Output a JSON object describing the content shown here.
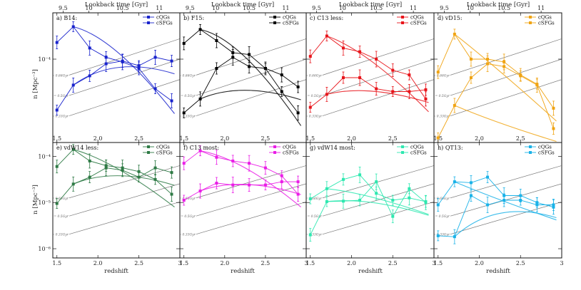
{
  "figure": {
    "top_axis_label": "Lookback time [Gyr]",
    "x_axis_label": "redshift",
    "y_axis_label": "n [Mpc⁻³]",
    "top_ticks": [
      {
        "label": "9.5",
        "z": 1.575
      },
      {
        "label": "10",
        "z": 1.89
      },
      {
        "label": "10.5",
        "z": 2.3
      },
      {
        "label": "11",
        "z": 2.75
      }
    ],
    "bottom_ticks": [
      {
        "label": "1.5",
        "z": 1.5
      },
      {
        "label": "2.0",
        "z": 2.0
      },
      {
        "label": "2.5",
        "z": 2.5
      },
      {
        "label": "3",
        "z": 3.0
      }
    ],
    "y_ticks_top_row": [
      {
        "label": "10⁻⁴",
        "value": 0.0001
      }
    ],
    "y_ticks_bottom_row": [
      {
        "label": "10⁻⁴",
        "value": 0.0001
      },
      {
        "label": "10⁻⁵",
        "value": 1e-05
      },
      {
        "label": "10⁻⁶",
        "value": 1e-06
      }
    ],
    "dt_labels": [
      "Δt = 0.66Gyr",
      "Δt = 0.5Gyr",
      "Δt = 0.33Gyr"
    ]
  },
  "chart_data": [
    {
      "type": "line",
      "panel": "a) B14:",
      "color": "#1822cc",
      "xlim": [
        1.45,
        3.0
      ],
      "ylim_log10": [
        -4.9,
        -3.5
      ],
      "title": "a) B14:",
      "series": [
        {
          "name": "cQGs",
          "x": [
            1.5,
            1.7,
            1.9,
            2.1,
            2.3,
            2.5,
            2.7,
            2.9
          ],
          "log_n": [
            -4.55,
            -4.28,
            -4.18,
            -4.05,
            -4.02,
            -4.07,
            -3.98,
            -4.02
          ]
        },
        {
          "name": "cSFGs",
          "x": [
            1.5,
            1.7,
            1.9,
            2.1,
            2.3,
            2.5,
            2.7,
            2.9
          ],
          "log_n": [
            -3.82,
            -3.65,
            -3.88,
            -3.98,
            -4.03,
            -4.1,
            -4.32,
            -4.45
          ]
        }
      ]
    },
    {
      "type": "line",
      "panel": "b) F15:",
      "color": "#000000",
      "xlim": [
        1.45,
        3.0
      ],
      "ylim_log10": [
        -4.9,
        -3.5
      ],
      "title": "b) F15:",
      "series": [
        {
          "name": "cQGs",
          "x": [
            1.5,
            1.7,
            1.9,
            2.1,
            2.3,
            2.5,
            2.7,
            2.9
          ],
          "log_n": [
            -4.58,
            -4.43,
            -4.1,
            -3.98,
            -4.08,
            -4.1,
            -4.17,
            -4.3
          ]
        },
        {
          "name": "cSFGs",
          "x": [
            1.5,
            1.7,
            1.9,
            2.1,
            2.3,
            2.5,
            2.7,
            2.9
          ],
          "log_n": [
            -3.83,
            -3.68,
            -3.8,
            -3.93,
            -3.95,
            -4.1,
            -4.35,
            -4.58
          ]
        }
      ]
    },
    {
      "type": "line",
      "panel": "c) C13 less:",
      "color": "#e8141a",
      "xlim": [
        1.45,
        3.0
      ],
      "ylim_log10": [
        -4.9,
        -3.5
      ],
      "title": "c) C13 less:",
      "series": [
        {
          "name": "cQGs",
          "x": [
            1.5,
            1.7,
            1.9,
            2.1,
            2.3,
            2.5,
            2.7,
            2.9
          ],
          "log_n": [
            -4.52,
            -4.38,
            -4.2,
            -4.2,
            -4.32,
            -4.35,
            -4.35,
            -4.33
          ]
        },
        {
          "name": "cSFGs",
          "x": [
            1.5,
            1.7,
            1.9,
            2.1,
            2.3,
            2.5,
            2.7,
            2.9
          ],
          "log_n": [
            -3.97,
            -3.75,
            -3.88,
            -3.92,
            -4.0,
            -4.12,
            -4.17,
            -4.43
          ]
        }
      ]
    },
    {
      "type": "line",
      "panel": "d) vD15:",
      "color": "#f0a414",
      "xlim": [
        1.45,
        3.0
      ],
      "ylim_log10": [
        -4.9,
        -3.5
      ],
      "title": "d) vD15:",
      "series": [
        {
          "name": "cQGs",
          "x": [
            1.5,
            1.7,
            1.9,
            2.1,
            2.3,
            2.5,
            2.7,
            2.9
          ],
          "log_n": [
            -4.85,
            -4.5,
            -4.2,
            -4.05,
            -4.08,
            -4.18,
            -4.28,
            -4.75
          ]
        },
        {
          "name": "cSFGs",
          "x": [
            1.5,
            1.7,
            1.9,
            2.1,
            2.3,
            2.5,
            2.7,
            2.9
          ],
          "log_n": [
            -4.14,
            -3.73,
            -4.0,
            -4.0,
            -4.03,
            -4.17,
            -4.27,
            -4.53
          ]
        }
      ]
    },
    {
      "type": "line",
      "panel": "e) vdW14 less:",
      "color": "#2e7a45",
      "xlim": [
        1.45,
        3.0
      ],
      "ylim_log10": [
        -6.2,
        -3.7
      ],
      "title": "e) vdW14 less:",
      "series": [
        {
          "name": "cQGs",
          "x": [
            1.5,
            1.7,
            1.9,
            2.1,
            2.3,
            2.5,
            2.7,
            2.9
          ],
          "log_n": [
            -5.02,
            -4.6,
            -4.45,
            -4.25,
            -4.3,
            -4.45,
            -4.25,
            -4.35
          ]
        },
        {
          "name": "cSFGs",
          "x": [
            1.5,
            1.7,
            1.9,
            2.1,
            2.3,
            2.5,
            2.7,
            2.9
          ],
          "log_n": [
            -4.22,
            -3.85,
            -4.1,
            -4.2,
            -4.25,
            -4.33,
            -4.5,
            -4.82
          ]
        }
      ]
    },
    {
      "type": "line",
      "panel": "f) C13 most:",
      "color": "#ea1ee6",
      "xlim": [
        1.45,
        3.0
      ],
      "ylim_log10": [
        -6.2,
        -3.7
      ],
      "title": "f) C13 most:",
      "series": [
        {
          "name": "cQGs",
          "x": [
            1.5,
            1.7,
            1.9,
            2.1,
            2.3,
            2.5,
            2.7,
            2.9
          ],
          "log_n": [
            -4.95,
            -4.75,
            -4.58,
            -4.62,
            -4.62,
            -4.62,
            -4.55,
            -4.55
          ]
        },
        {
          "name": "cSFGs",
          "x": [
            1.5,
            1.7,
            1.9,
            2.1,
            2.3,
            2.5,
            2.7,
            2.9
          ],
          "log_n": [
            -4.15,
            -3.88,
            -4.02,
            -4.1,
            -4.15,
            -4.25,
            -4.42,
            -4.82
          ]
        }
      ]
    },
    {
      "type": "line",
      "panel": "g) vdW14 most:",
      "color": "#2ee8b0",
      "xlim": [
        1.45,
        3.0
      ],
      "ylim_log10": [
        -6.2,
        -3.7
      ],
      "title": "g) vdW14 most:",
      "series": [
        {
          "name": "cQGs",
          "x": [
            1.5,
            1.7,
            1.9,
            2.1,
            2.3,
            2.5,
            2.7,
            2.9
          ],
          "log_n": [
            -4.92,
            -4.7,
            -4.5,
            -4.4,
            -4.8,
            -4.95,
            -4.9,
            -4.98
          ]
        },
        {
          "name": "cSFGs",
          "x": [
            1.5,
            1.7,
            1.9,
            2.1,
            2.3,
            2.5,
            2.7,
            2.9
          ],
          "log_n": [
            -5.7,
            -4.98,
            -4.97,
            -4.95,
            -4.55,
            -5.3,
            -4.7,
            -5.0
          ]
        }
      ]
    },
    {
      "type": "line",
      "panel": "h) QT13:",
      "color": "#1ab2e8",
      "xlim": [
        1.45,
        3.0
      ],
      "ylim_log10": [
        -6.2,
        -3.7
      ],
      "title": "h) QT13:",
      "series": [
        {
          "name": "cQGs",
          "x": [
            1.5,
            1.7,
            1.9,
            2.1,
            2.3,
            2.5,
            2.7,
            2.9
          ],
          "log_n": [
            -5.72,
            -5.74,
            -4.85,
            -5.05,
            -4.95,
            -4.95,
            -5.05,
            -5.05
          ]
        },
        {
          "name": "cSFGs",
          "x": [
            1.5,
            1.7,
            1.9,
            2.1,
            2.3,
            2.5,
            2.7,
            2.9
          ],
          "log_n": [
            -5.05,
            -4.55,
            -4.57,
            -4.45,
            -4.85,
            -4.85,
            -5.0,
            -5.1
          ]
        }
      ]
    }
  ]
}
